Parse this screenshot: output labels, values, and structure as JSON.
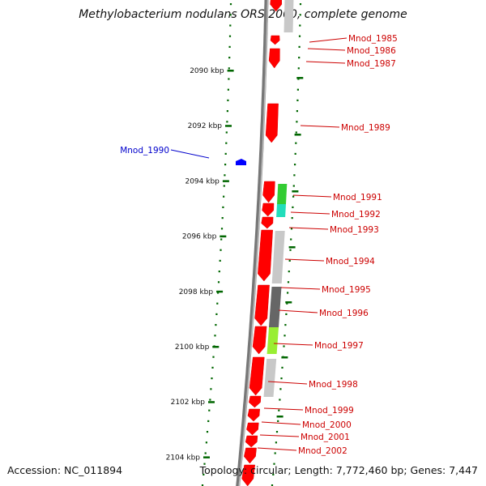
{
  "title": "Methylobacterium nodulans ORS 2060, complete genome",
  "accession": "Accession: NC_011894",
  "topology": "Topology: circular; Length: 7,772,460 bp; Genes: 7,447",
  "colors": {
    "gene_forward": "#ff0000",
    "label_forward": "#cc0000",
    "gene_reverse": "#0000ff",
    "label_reverse": "#0000cc",
    "ticks": "#006600",
    "backbone": "#777777",
    "cog_light": "#c8c8c8",
    "cog_dark": "#666666",
    "cog_green": "#33cc33",
    "cog_cyan": "#22ddbb",
    "cog_yellowgreen": "#99ee33"
  },
  "scale_ticks": [
    {
      "label": "2090 kbp",
      "kbp": 2090
    },
    {
      "label": "2092 kbp",
      "kbp": 2092
    },
    {
      "label": "2094 kbp",
      "kbp": 2094
    },
    {
      "label": "2096 kbp",
      "kbp": 2096
    },
    {
      "label": "2098 kbp",
      "kbp": 2098
    },
    {
      "label": "2100 kbp",
      "kbp": 2100
    },
    {
      "label": "2102 kbp",
      "kbp": 2102
    },
    {
      "label": "2104 kbp",
      "kbp": 2104
    }
  ],
  "genes": [
    {
      "name": "Mnod_1985",
      "strand": "+"
    },
    {
      "name": "Mnod_1986",
      "strand": "+"
    },
    {
      "name": "Mnod_1987",
      "strand": "+"
    },
    {
      "name": "Mnod_1989",
      "strand": "+"
    },
    {
      "name": "Mnod_1990",
      "strand": "-"
    },
    {
      "name": "Mnod_1991",
      "strand": "+"
    },
    {
      "name": "Mnod_1992",
      "strand": "+"
    },
    {
      "name": "Mnod_1993",
      "strand": "+"
    },
    {
      "name": "Mnod_1994",
      "strand": "+"
    },
    {
      "name": "Mnod_1995",
      "strand": "+"
    },
    {
      "name": "Mnod_1996",
      "strand": "+"
    },
    {
      "name": "Mnod_1997",
      "strand": "+"
    },
    {
      "name": "Mnod_1998",
      "strand": "+"
    },
    {
      "name": "Mnod_1999",
      "strand": "+"
    },
    {
      "name": "Mnod_2000",
      "strand": "+"
    },
    {
      "name": "Mnod_2001",
      "strand": "+"
    },
    {
      "name": "Mnod_2002",
      "strand": "+"
    }
  ]
}
